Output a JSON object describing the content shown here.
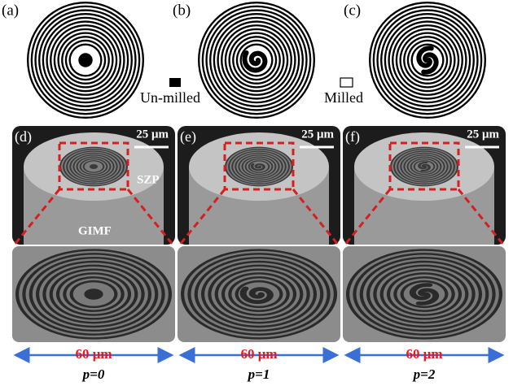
{
  "top_panels": [
    {
      "label": "(a)"
    },
    {
      "label": "(b)"
    },
    {
      "label": "(c)"
    }
  ],
  "legend": {
    "unmilled": "Un-milled",
    "milled": "Milled"
  },
  "sem_panels": [
    {
      "label": "(d)",
      "scale_bar": "25 μm",
      "width_label": "60 μm",
      "caption": "p=0"
    },
    {
      "label": "(e)",
      "scale_bar": "25 μm",
      "width_label": "60 μm",
      "caption": "p=1"
    },
    {
      "label": "(f)",
      "scale_bar": "25 μm",
      "width_label": "60 μm",
      "caption": "p=2"
    }
  ],
  "annotations": {
    "szp": "SZP",
    "gimf": "GIMF"
  }
}
